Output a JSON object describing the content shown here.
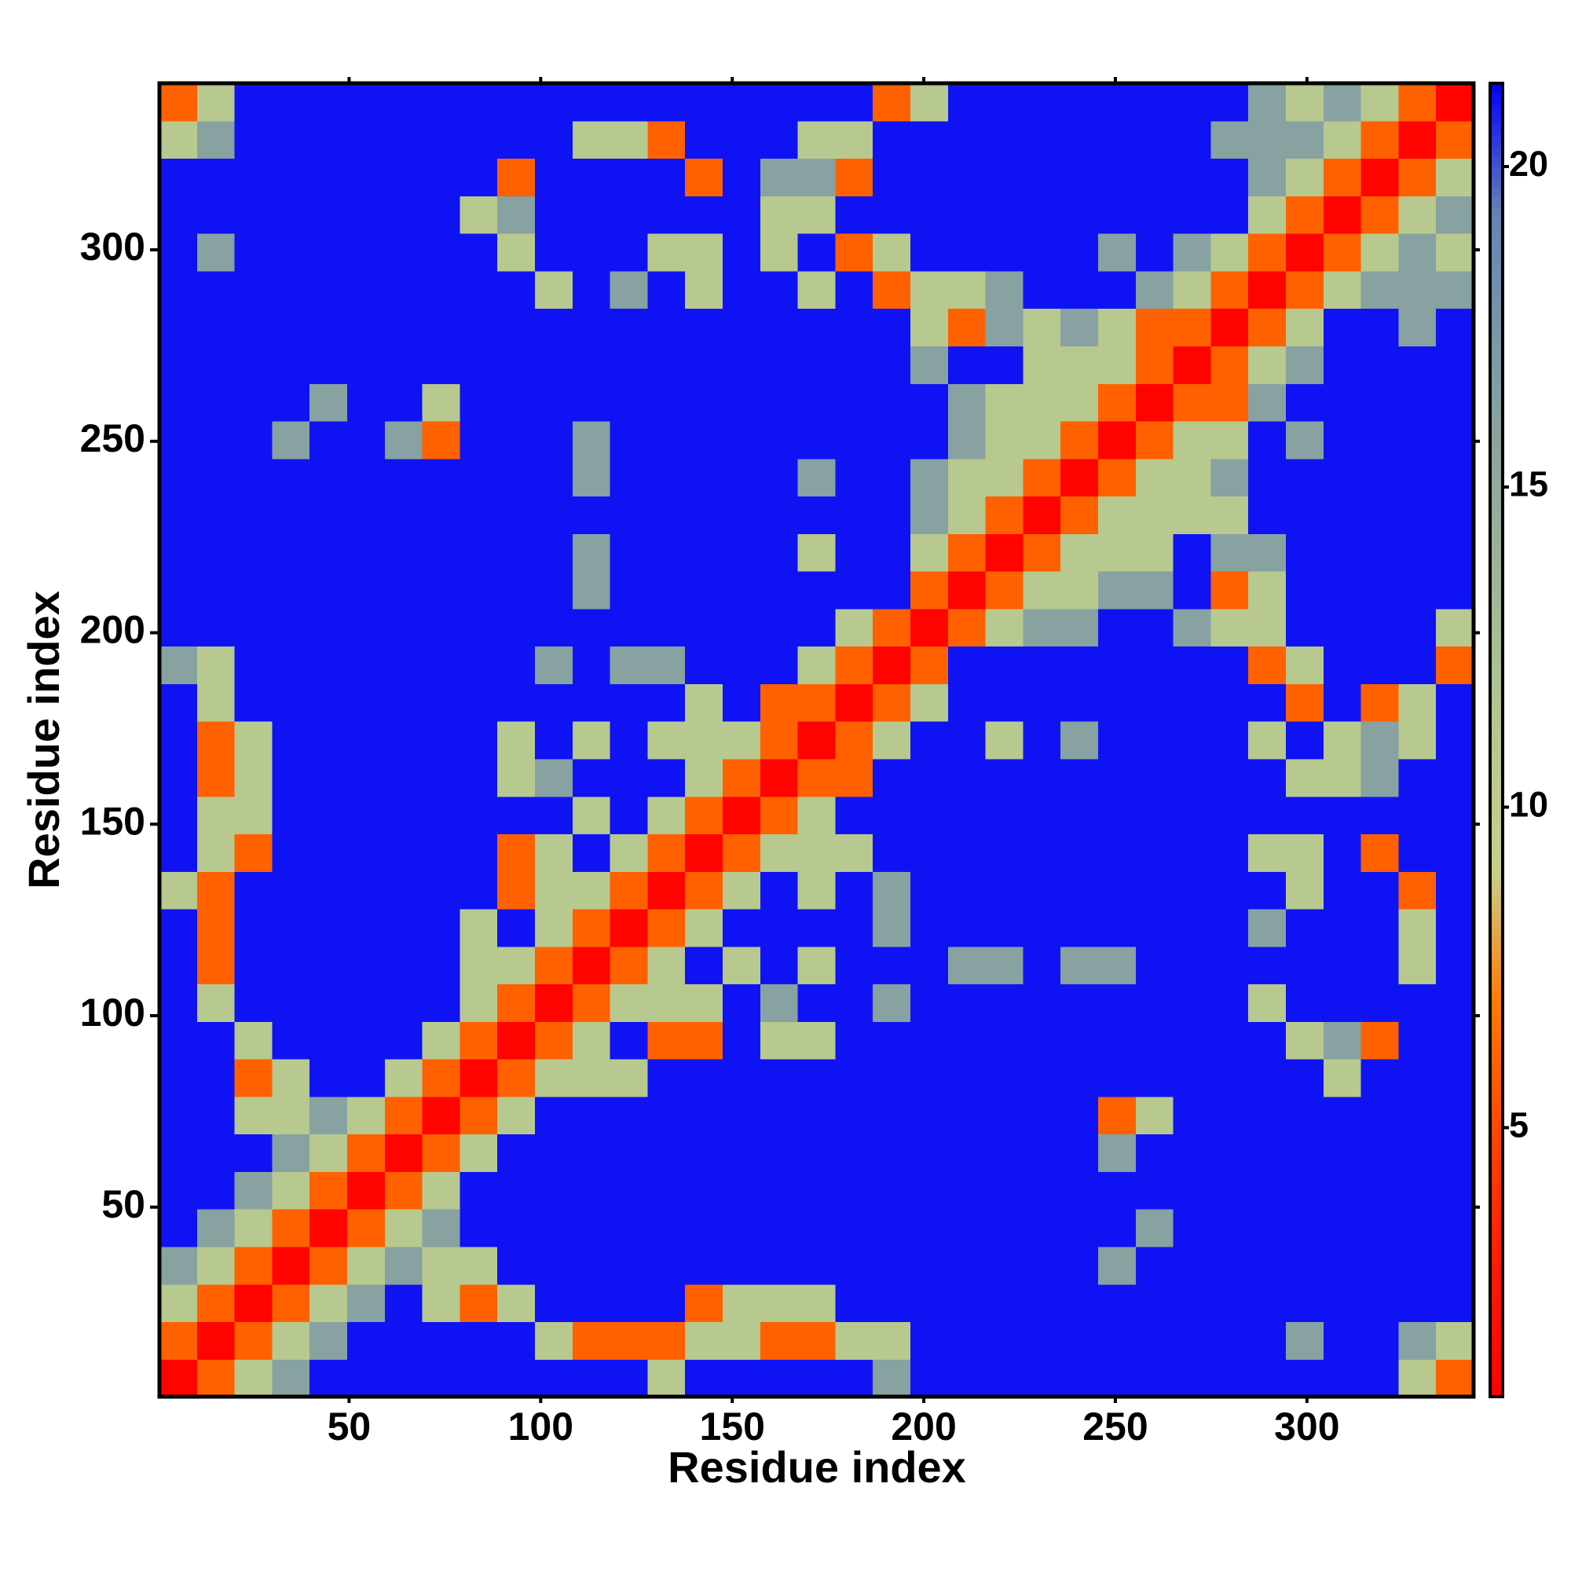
{
  "chart_data": {
    "type": "heatmap",
    "xlabel": "Residue index",
    "ylabel": "Residue index",
    "x": [
      5.4,
      15.2,
      25,
      34.8,
      44.6,
      54.4,
      64.2,
      74,
      83.8,
      93.6,
      103.4,
      113.2,
      123,
      132.8,
      142.6,
      152.4,
      162.2,
      172,
      181.8,
      191.6,
      201.4,
      211.2,
      221,
      230.8,
      240.6,
      250.4,
      260.2,
      270,
      279.8,
      289.6,
      299.4,
      309.2,
      319,
      328.8,
      338.6
    ],
    "y": [
      5.4,
      15.2,
      25,
      34.8,
      44.6,
      54.4,
      64.2,
      74,
      83.8,
      93.6,
      103.4,
      113.2,
      123,
      132.8,
      142.6,
      152.4,
      162.2,
      172,
      181.8,
      191.6,
      201.4,
      211.2,
      221,
      230.8,
      240.6,
      250.4,
      260.2,
      270,
      279.8,
      289.6,
      299.4,
      309.2,
      319,
      328.8,
      338.6
    ],
    "z": [
      [
        1,
        6,
        11,
        16,
        21,
        21,
        21,
        21,
        21,
        21,
        21,
        21,
        21,
        11,
        21,
        21,
        21,
        21,
        21,
        16,
        21,
        21,
        21,
        21,
        21,
        21,
        21,
        21,
        21,
        21,
        21,
        21,
        21,
        11,
        6
      ],
      [
        6,
        1,
        6,
        11,
        16,
        21,
        21,
        21,
        21,
        21,
        11,
        6,
        6,
        6,
        11,
        11,
        6,
        6,
        11,
        11,
        21,
        21,
        21,
        21,
        21,
        21,
        21,
        21,
        21,
        21,
        16,
        21,
        21,
        16,
        11
      ],
      [
        11,
        6,
        1,
        6,
        11,
        16,
        21,
        11,
        6,
        11,
        21,
        21,
        21,
        21,
        6,
        11,
        11,
        11,
        21,
        21,
        21,
        21,
        21,
        21,
        21,
        21,
        21,
        21,
        21,
        21,
        21,
        21,
        21,
        21,
        21
      ],
      [
        16,
        11,
        6,
        1,
        6,
        11,
        16,
        11,
        11,
        21,
        21,
        21,
        21,
        21,
        21,
        21,
        21,
        21,
        21,
        21,
        21,
        21,
        21,
        21,
        21,
        16,
        21,
        21,
        21,
        21,
        21,
        21,
        21,
        21,
        21
      ],
      [
        21,
        16,
        11,
        6,
        1,
        6,
        11,
        16,
        21,
        21,
        21,
        21,
        21,
        21,
        21,
        21,
        21,
        21,
        21,
        21,
        21,
        21,
        21,
        21,
        21,
        21,
        16,
        21,
        21,
        21,
        21,
        21,
        21,
        21,
        21
      ],
      [
        21,
        21,
        16,
        11,
        6,
        1,
        6,
        11,
        21,
        21,
        21,
        21,
        21,
        21,
        21,
        21,
        21,
        21,
        21,
        21,
        21,
        21,
        21,
        21,
        21,
        21,
        21,
        21,
        21,
        21,
        21,
        21,
        21,
        21,
        21
      ],
      [
        21,
        21,
        21,
        16,
        11,
        6,
        1,
        6,
        11,
        21,
        21,
        21,
        21,
        21,
        21,
        21,
        21,
        21,
        21,
        21,
        21,
        21,
        21,
        21,
        21,
        16,
        21,
        21,
        21,
        21,
        21,
        21,
        21,
        21,
        21
      ],
      [
        21,
        21,
        11,
        11,
        16,
        11,
        6,
        1,
        6,
        11,
        21,
        21,
        21,
        21,
        21,
        21,
        21,
        21,
        21,
        21,
        21,
        21,
        21,
        21,
        21,
        6,
        11,
        21,
        21,
        21,
        21,
        21,
        21,
        21,
        21
      ],
      [
        21,
        21,
        6,
        11,
        21,
        21,
        11,
        6,
        1,
        6,
        11,
        11,
        11,
        21,
        21,
        21,
        21,
        21,
        21,
        21,
        21,
        21,
        21,
        21,
        21,
        21,
        21,
        21,
        21,
        21,
        21,
        11,
        21,
        21,
        21
      ],
      [
        21,
        21,
        11,
        21,
        21,
        21,
        21,
        11,
        6,
        1,
        6,
        11,
        21,
        6,
        6,
        21,
        11,
        11,
        21,
        21,
        21,
        21,
        21,
        21,
        21,
        21,
        21,
        21,
        21,
        21,
        11,
        16,
        6,
        21,
        21
      ],
      [
        21,
        11,
        21,
        21,
        21,
        21,
        21,
        21,
        11,
        6,
        1,
        6,
        11,
        11,
        11,
        21,
        16,
        21,
        21,
        16,
        21,
        21,
        21,
        21,
        21,
        21,
        21,
        21,
        21,
        11,
        21,
        21,
        21,
        21,
        21
      ],
      [
        21,
        6,
        21,
        21,
        21,
        21,
        21,
        21,
        11,
        11,
        6,
        1,
        6,
        11,
        21,
        11,
        21,
        11,
        21,
        21,
        21,
        16,
        16,
        21,
        16,
        16,
        21,
        21,
        21,
        21,
        21,
        21,
        21,
        11,
        21
      ],
      [
        21,
        6,
        21,
        21,
        21,
        21,
        21,
        21,
        11,
        21,
        11,
        6,
        1,
        6,
        11,
        21,
        21,
        21,
        21,
        16,
        21,
        21,
        21,
        21,
        21,
        21,
        21,
        21,
        21,
        16,
        21,
        21,
        21,
        11,
        21
      ],
      [
        11,
        6,
        21,
        21,
        21,
        21,
        21,
        21,
        21,
        6,
        11,
        11,
        6,
        1,
        6,
        11,
        21,
        11,
        21,
        16,
        21,
        21,
        21,
        21,
        21,
        21,
        21,
        21,
        21,
        21,
        11,
        21,
        21,
        6,
        21
      ],
      [
        21,
        11,
        6,
        21,
        21,
        21,
        21,
        21,
        21,
        6,
        11,
        21,
        11,
        6,
        1,
        6,
        11,
        11,
        11,
        21,
        21,
        21,
        21,
        21,
        21,
        21,
        21,
        21,
        21,
        11,
        11,
        21,
        6,
        21,
        21
      ],
      [
        21,
        11,
        11,
        21,
        21,
        21,
        21,
        21,
        21,
        21,
        21,
        11,
        21,
        11,
        6,
        1,
        6,
        11,
        21,
        21,
        21,
        21,
        21,
        21,
        21,
        21,
        21,
        21,
        21,
        21,
        21,
        21,
        21,
        21,
        21
      ],
      [
        21,
        6,
        11,
        21,
        21,
        21,
        21,
        21,
        21,
        11,
        16,
        21,
        21,
        21,
        11,
        6,
        1,
        6,
        6,
        21,
        21,
        21,
        21,
        21,
        21,
        21,
        21,
        21,
        21,
        21,
        11,
        11,
        16,
        21,
        21
      ],
      [
        21,
        6,
        11,
        21,
        21,
        21,
        21,
        21,
        21,
        11,
        21,
        11,
        21,
        11,
        11,
        11,
        6,
        1,
        6,
        11,
        21,
        21,
        11,
        21,
        16,
        21,
        21,
        21,
        21,
        11,
        21,
        11,
        16,
        11,
        21
      ],
      [
        21,
        11,
        21,
        21,
        21,
        21,
        21,
        21,
        21,
        21,
        21,
        21,
        21,
        21,
        11,
        21,
        6,
        6,
        1,
        6,
        11,
        21,
        21,
        21,
        21,
        21,
        21,
        21,
        21,
        21,
        6,
        21,
        6,
        11,
        21
      ],
      [
        16,
        11,
        21,
        21,
        21,
        21,
        21,
        21,
        21,
        21,
        16,
        21,
        16,
        16,
        21,
        21,
        21,
        11,
        6,
        1,
        6,
        21,
        21,
        21,
        21,
        21,
        21,
        21,
        21,
        6,
        11,
        21,
        21,
        21,
        6
      ],
      [
        21,
        21,
        21,
        21,
        21,
        21,
        21,
        21,
        21,
        21,
        21,
        21,
        21,
        21,
        21,
        21,
        21,
        21,
        11,
        6,
        1,
        6,
        11,
        16,
        16,
        21,
        21,
        16,
        11,
        11,
        21,
        21,
        21,
        21,
        11
      ],
      [
        21,
        21,
        21,
        21,
        21,
        21,
        21,
        21,
        21,
        21,
        21,
        16,
        21,
        21,
        21,
        21,
        21,
        21,
        21,
        21,
        6,
        1,
        6,
        11,
        11,
        16,
        16,
        21,
        6,
        11,
        21,
        21,
        21,
        21,
        21
      ],
      [
        21,
        21,
        21,
        21,
        21,
        21,
        21,
        21,
        21,
        21,
        21,
        16,
        21,
        21,
        21,
        21,
        21,
        11,
        21,
        21,
        11,
        6,
        1,
        6,
        11,
        11,
        11,
        21,
        16,
        16,
        21,
        21,
        21,
        21,
        21
      ],
      [
        21,
        21,
        21,
        21,
        21,
        21,
        21,
        21,
        21,
        21,
        21,
        21,
        21,
        21,
        21,
        21,
        21,
        21,
        21,
        21,
        16,
        11,
        6,
        1,
        6,
        11,
        11,
        11,
        11,
        21,
        21,
        21,
        21,
        21,
        21
      ],
      [
        21,
        21,
        21,
        21,
        21,
        21,
        21,
        21,
        21,
        21,
        21,
        16,
        21,
        21,
        21,
        21,
        21,
        16,
        21,
        21,
        16,
        11,
        11,
        6,
        1,
        6,
        11,
        11,
        16,
        21,
        21,
        21,
        21,
        21,
        21
      ],
      [
        21,
        21,
        21,
        16,
        21,
        21,
        16,
        6,
        21,
        21,
        21,
        16,
        21,
        21,
        21,
        21,
        21,
        21,
        21,
        21,
        21,
        16,
        11,
        11,
        6,
        1,
        6,
        11,
        11,
        21,
        16,
        21,
        21,
        21,
        21
      ],
      [
        21,
        21,
        21,
        21,
        16,
        21,
        21,
        11,
        21,
        21,
        21,
        21,
        21,
        21,
        21,
        21,
        21,
        21,
        21,
        21,
        21,
        16,
        11,
        11,
        11,
        6,
        1,
        6,
        6,
        16,
        21,
        21,
        21,
        21,
        21
      ],
      [
        21,
        21,
        21,
        21,
        21,
        21,
        21,
        21,
        21,
        21,
        21,
        21,
        21,
        21,
        21,
        21,
        21,
        21,
        21,
        21,
        16,
        21,
        21,
        11,
        11,
        11,
        6,
        1,
        6,
        11,
        16,
        21,
        21,
        21,
        21
      ],
      [
        21,
        21,
        21,
        21,
        21,
        21,
        21,
        21,
        21,
        21,
        21,
        21,
        21,
        21,
        21,
        21,
        21,
        21,
        21,
        21,
        11,
        6,
        16,
        11,
        16,
        11,
        6,
        6,
        1,
        6,
        11,
        21,
        21,
        16,
        21
      ],
      [
        21,
        21,
        21,
        21,
        21,
        21,
        21,
        21,
        21,
        21,
        11,
        21,
        16,
        21,
        11,
        21,
        21,
        11,
        21,
        6,
        11,
        11,
        16,
        21,
        21,
        21,
        16,
        11,
        6,
        1,
        6,
        11,
        16,
        16,
        16
      ],
      [
        21,
        16,
        21,
        21,
        21,
        21,
        21,
        21,
        21,
        11,
        21,
        21,
        21,
        11,
        11,
        21,
        11,
        21,
        6,
        11,
        21,
        21,
        21,
        21,
        21,
        16,
        21,
        16,
        11,
        6,
        1,
        6,
        11,
        16,
        11
      ],
      [
        21,
        21,
        21,
        21,
        21,
        21,
        21,
        21,
        11,
        16,
        21,
        21,
        21,
        21,
        21,
        21,
        11,
        11,
        21,
        21,
        21,
        21,
        21,
        21,
        21,
        21,
        21,
        21,
        21,
        11,
        6,
        1,
        6,
        11,
        16
      ],
      [
        21,
        21,
        21,
        21,
        21,
        21,
        21,
        21,
        21,
        6,
        21,
        21,
        21,
        21,
        6,
        21,
        16,
        16,
        6,
        21,
        21,
        21,
        21,
        21,
        21,
        21,
        21,
        21,
        21,
        16,
        11,
        6,
        1,
        6,
        11
      ],
      [
        11,
        16,
        21,
        21,
        21,
        21,
        21,
        21,
        21,
        21,
        21,
        11,
        11,
        6,
        21,
        21,
        21,
        11,
        11,
        21,
        21,
        21,
        21,
        21,
        21,
        21,
        21,
        21,
        16,
        16,
        16,
        11,
        6,
        1,
        6
      ],
      [
        6,
        11,
        21,
        21,
        21,
        21,
        21,
        21,
        21,
        21,
        21,
        21,
        21,
        21,
        21,
        21,
        21,
        21,
        21,
        6,
        11,
        21,
        21,
        21,
        21,
        21,
        21,
        21,
        21,
        16,
        11,
        16,
        11,
        6,
        1
      ]
    ],
    "xlim": [
      0.5,
      343.5
    ],
    "ylim": [
      0.5,
      343.5
    ],
    "xticks": [
      50,
      100,
      150,
      200,
      250,
      300
    ],
    "yticks": [
      50,
      100,
      150,
      200,
      250,
      300
    ],
    "zlim": [
      0.8,
      21.3
    ],
    "zticks": [
      5,
      10,
      15,
      20
    ],
    "colorscale": [
      "#ff0000",
      "#ff1a00",
      "#ff4500",
      "#ff7a00",
      "#c9cf8b",
      "#b7c98e",
      "#a3b996",
      "#8fa99c",
      "#7b99a6",
      "#6584b5",
      "#0000ff"
    ]
  }
}
